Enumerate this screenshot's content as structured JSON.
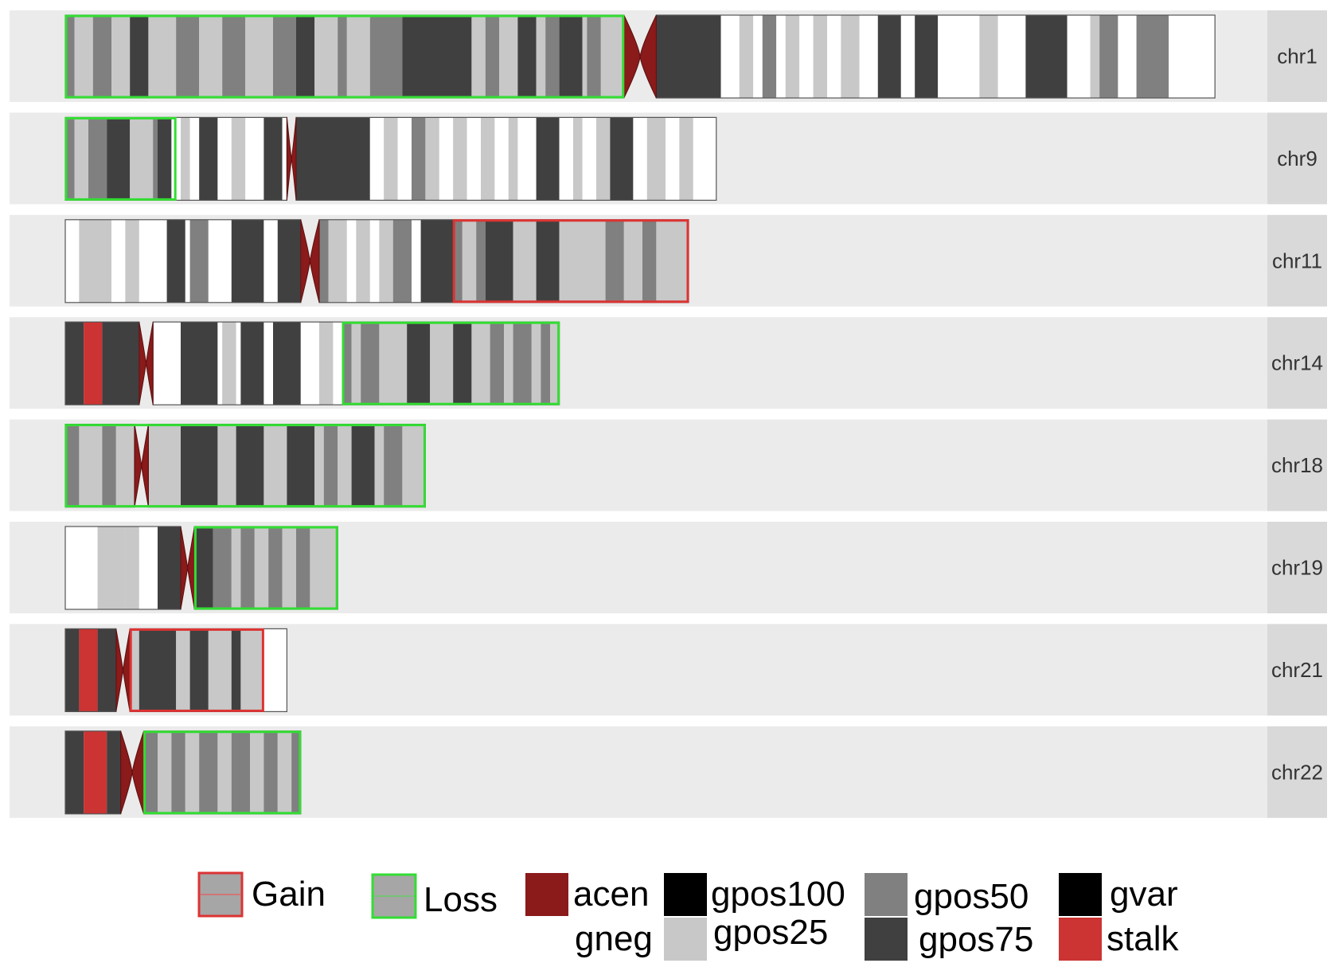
{
  "colors": {
    "gneg": "#ffffff",
    "gpos25": "#c8c8c8",
    "gpos50": "#808080",
    "gpos75": "#404040",
    "gpos100": "#000000",
    "gvar": "#000000",
    "stalk": "#cc3333",
    "acen": "#8b1a1a",
    "gain": "#dd3333",
    "loss": "#33dd33",
    "panel": "#ebebeb",
    "strip": "#d9d9d9"
  },
  "chromosomes": [
    {
      "name": "chr1",
      "length": 249,
      "centromere": [
        121,
        128
      ],
      "bands": [
        [
          0,
          2,
          "gpos50"
        ],
        [
          2,
          6,
          "gpos25"
        ],
        [
          6,
          10,
          "gpos50"
        ],
        [
          10,
          14,
          "gpos25"
        ],
        [
          14,
          18,
          "gpos75"
        ],
        [
          18,
          24,
          "gpos25"
        ],
        [
          24,
          29,
          "gpos50"
        ],
        [
          29,
          34,
          "gpos25"
        ],
        [
          34,
          39,
          "gpos50"
        ],
        [
          39,
          45,
          "gpos25"
        ],
        [
          45,
          50,
          "gpos50"
        ],
        [
          50,
          54,
          "gpos75"
        ],
        [
          54,
          59,
          "gpos25"
        ],
        [
          59,
          61,
          "gpos50"
        ],
        [
          61,
          66,
          "gpos25"
        ],
        [
          66,
          73,
          "gpos50"
        ],
        [
          73,
          88,
          "gpos75"
        ],
        [
          88,
          91,
          "gpos25"
        ],
        [
          91,
          94,
          "gpos50"
        ],
        [
          94,
          98,
          "gpos25"
        ],
        [
          98,
          102,
          "gpos75"
        ],
        [
          102,
          104,
          "gpos25"
        ],
        [
          104,
          107,
          "gpos50"
        ],
        [
          107,
          112,
          "gpos75"
        ],
        [
          112,
          113,
          "gpos25"
        ],
        [
          113,
          116,
          "gpos50"
        ],
        [
          116,
          121,
          "gpos25"
        ],
        [
          128,
          142,
          "gpos75"
        ],
        [
          142,
          146,
          "gneg"
        ],
        [
          146,
          149,
          "gpos25"
        ],
        [
          149,
          151,
          "gneg"
        ],
        [
          151,
          154,
          "gpos50"
        ],
        [
          154,
          156,
          "gneg"
        ],
        [
          156,
          159,
          "gpos25"
        ],
        [
          159,
          162,
          "gneg"
        ],
        [
          162,
          165,
          "gpos25"
        ],
        [
          165,
          168,
          "gneg"
        ],
        [
          168,
          172,
          "gpos25"
        ],
        [
          172,
          176,
          "gneg"
        ],
        [
          176,
          181,
          "gpos75"
        ],
        [
          181,
          184,
          "gneg"
        ],
        [
          184,
          189,
          "gpos75"
        ],
        [
          189,
          198,
          "gneg"
        ],
        [
          198,
          202,
          "gpos25"
        ],
        [
          202,
          208,
          "gneg"
        ],
        [
          208,
          217,
          "gpos75"
        ],
        [
          217,
          222,
          "gneg"
        ],
        [
          222,
          224,
          "gpos25"
        ],
        [
          224,
          228,
          "gpos50"
        ],
        [
          228,
          232,
          "gneg"
        ],
        [
          232,
          239,
          "gpos50"
        ],
        [
          239,
          249,
          "gneg"
        ]
      ],
      "cnv": [
        {
          "start": 0,
          "end": 121,
          "type": "loss"
        }
      ]
    },
    {
      "name": "chr9",
      "length": 141,
      "centromere": [
        48,
        50
      ],
      "bands": [
        [
          0,
          2,
          "gpos50"
        ],
        [
          2,
          5,
          "gpos25"
        ],
        [
          5,
          9,
          "gpos50"
        ],
        [
          9,
          14,
          "gpos75"
        ],
        [
          14,
          19,
          "gpos25"
        ],
        [
          19,
          20,
          "gpos50"
        ],
        [
          20,
          23,
          "gpos75"
        ],
        [
          23,
          25,
          "gneg"
        ],
        [
          25,
          27,
          "gpos25"
        ],
        [
          27,
          29,
          "gneg"
        ],
        [
          29,
          33,
          "gpos75"
        ],
        [
          33,
          36,
          "gneg"
        ],
        [
          36,
          39,
          "gpos25"
        ],
        [
          39,
          43,
          "gneg"
        ],
        [
          43,
          47,
          "gpos75"
        ],
        [
          47,
          48,
          "gneg"
        ],
        [
          50,
          66,
          "gpos75"
        ],
        [
          66,
          69,
          "gneg"
        ],
        [
          69,
          72,
          "gpos25"
        ],
        [
          72,
          75,
          "gneg"
        ],
        [
          75,
          78,
          "gpos50"
        ],
        [
          78,
          81,
          "gpos25"
        ],
        [
          81,
          84,
          "gneg"
        ],
        [
          84,
          87,
          "gpos25"
        ],
        [
          87,
          90,
          "gneg"
        ],
        [
          90,
          93,
          "gpos25"
        ],
        [
          93,
          96,
          "gneg"
        ],
        [
          96,
          98,
          "gpos25"
        ],
        [
          98,
          102,
          "gneg"
        ],
        [
          102,
          107,
          "gpos75"
        ],
        [
          107,
          110,
          "gneg"
        ],
        [
          110,
          112,
          "gpos25"
        ],
        [
          112,
          115,
          "gneg"
        ],
        [
          115,
          118,
          "gpos25"
        ],
        [
          118,
          123,
          "gpos75"
        ],
        [
          123,
          126,
          "gneg"
        ],
        [
          126,
          130,
          "gpos25"
        ],
        [
          130,
          133,
          "gneg"
        ],
        [
          133,
          136,
          "gpos25"
        ],
        [
          136,
          141,
          "gneg"
        ]
      ],
      "cnv": [
        {
          "start": 0,
          "end": 24,
          "type": "loss"
        }
      ]
    },
    {
      "name": "chr11",
      "length": 135,
      "centromere": [
        51,
        55
      ],
      "bands": [
        [
          0,
          3,
          "gneg"
        ],
        [
          3,
          10,
          "gpos25"
        ],
        [
          10,
          13,
          "gneg"
        ],
        [
          13,
          16,
          "gpos25"
        ],
        [
          16,
          22,
          "gneg"
        ],
        [
          22,
          26,
          "gpos75"
        ],
        [
          26,
          27,
          "gneg"
        ],
        [
          27,
          31,
          "gpos50"
        ],
        [
          31,
          36,
          "gneg"
        ],
        [
          36,
          43,
          "gpos75"
        ],
        [
          43,
          46,
          "gneg"
        ],
        [
          46,
          51,
          "gpos75"
        ],
        [
          55,
          57,
          "gpos50"
        ],
        [
          57,
          61,
          "gpos25"
        ],
        [
          61,
          63,
          "gneg"
        ],
        [
          63,
          66,
          "gpos25"
        ],
        [
          66,
          68,
          "gneg"
        ],
        [
          68,
          71,
          "gpos25"
        ],
        [
          71,
          75,
          "gpos50"
        ],
        [
          75,
          77,
          "gneg"
        ],
        [
          77,
          84,
          "gpos75"
        ],
        [
          84,
          86,
          "gpos50"
        ],
        [
          86,
          89,
          "gpos25"
        ],
        [
          89,
          91,
          "gpos50"
        ],
        [
          91,
          97,
          "gpos75"
        ],
        [
          97,
          102,
          "gpos25"
        ],
        [
          102,
          107,
          "gpos75"
        ],
        [
          107,
          112,
          "gpos25"
        ],
        [
          112,
          117,
          "gpos25"
        ],
        [
          117,
          121,
          "gpos50"
        ],
        [
          121,
          125,
          "gpos25"
        ],
        [
          125,
          128,
          "gpos50"
        ],
        [
          128,
          135,
          "gpos25"
        ]
      ],
      "cnv": [
        {
          "start": 84,
          "end": 135,
          "type": "gain"
        }
      ]
    },
    {
      "name": "chr14",
      "length": 107,
      "centromere": [
        16,
        19
      ],
      "bands": [
        [
          0,
          4,
          "gpos75"
        ],
        [
          4,
          8,
          "stalk"
        ],
        [
          8,
          16,
          "gpos75"
        ],
        [
          19,
          25,
          "gneg"
        ],
        [
          25,
          33,
          "gpos75"
        ],
        [
          33,
          34,
          "gneg"
        ],
        [
          34,
          37,
          "gpos25"
        ],
        [
          37,
          38,
          "gneg"
        ],
        [
          38,
          43,
          "gpos75"
        ],
        [
          43,
          45,
          "gneg"
        ],
        [
          45,
          51,
          "gpos75"
        ],
        [
          51,
          55,
          "gneg"
        ],
        [
          55,
          58,
          "gpos25"
        ],
        [
          58,
          60,
          "gneg"
        ],
        [
          60,
          62,
          "gpos50"
        ],
        [
          62,
          64,
          "gpos25"
        ],
        [
          64,
          68,
          "gpos50"
        ],
        [
          68,
          74,
          "gpos25"
        ],
        [
          74,
          79,
          "gpos75"
        ],
        [
          79,
          84,
          "gpos25"
        ],
        [
          84,
          88,
          "gpos75"
        ],
        [
          88,
          92,
          "gpos25"
        ],
        [
          92,
          95,
          "gpos50"
        ],
        [
          95,
          97,
          "gpos25"
        ],
        [
          97,
          101,
          "gpos50"
        ],
        [
          101,
          103,
          "gpos25"
        ],
        [
          103,
          105,
          "gpos50"
        ],
        [
          105,
          107,
          "gpos25"
        ]
      ],
      "cnv": [
        {
          "start": 60,
          "end": 107,
          "type": "loss"
        }
      ]
    },
    {
      "name": "chr18",
      "length": 78,
      "centromere": [
        15,
        18
      ],
      "bands": [
        [
          0,
          3,
          "gpos50"
        ],
        [
          3,
          8,
          "gpos25"
        ],
        [
          8,
          11,
          "gpos50"
        ],
        [
          11,
          15,
          "gpos25"
        ],
        [
          18,
          25,
          "gpos25"
        ],
        [
          25,
          33,
          "gpos75"
        ],
        [
          33,
          37,
          "gpos25"
        ],
        [
          37,
          43,
          "gpos75"
        ],
        [
          43,
          48,
          "gpos25"
        ],
        [
          48,
          54,
          "gpos75"
        ],
        [
          54,
          56,
          "gpos25"
        ],
        [
          56,
          59,
          "gpos50"
        ],
        [
          59,
          62,
          "gpos25"
        ],
        [
          62,
          67,
          "gpos75"
        ],
        [
          67,
          69,
          "gpos25"
        ],
        [
          69,
          73,
          "gpos50"
        ],
        [
          73,
          78,
          "gpos25"
        ]
      ],
      "cnv": [
        {
          "start": 0,
          "end": 78,
          "type": "loss"
        }
      ]
    },
    {
      "name": "chr19",
      "length": 59,
      "centromere": [
        25,
        28
      ],
      "bands": [
        [
          0,
          7,
          "gneg"
        ],
        [
          7,
          13,
          "gpos25"
        ],
        [
          13,
          16,
          "gpos25"
        ],
        [
          16,
          20,
          "gneg"
        ],
        [
          20,
          25,
          "gpos75"
        ],
        [
          28,
          32,
          "gpos75"
        ],
        [
          32,
          36,
          "gpos50"
        ],
        [
          36,
          38,
          "gpos25"
        ],
        [
          38,
          41,
          "gpos50"
        ],
        [
          41,
          44,
          "gpos25"
        ],
        [
          44,
          47,
          "gpos50"
        ],
        [
          47,
          50,
          "gpos25"
        ],
        [
          50,
          53,
          "gpos50"
        ],
        [
          53,
          59,
          "gpos25"
        ]
      ],
      "cnv": [
        {
          "start": 28,
          "end": 59,
          "type": "loss"
        }
      ]
    },
    {
      "name": "chr21",
      "length": 48,
      "centromere": [
        11,
        14
      ],
      "bands": [
        [
          0,
          3,
          "gpos75"
        ],
        [
          3,
          7,
          "stalk"
        ],
        [
          7,
          11,
          "gpos75"
        ],
        [
          14,
          16,
          "gpos25"
        ],
        [
          16,
          24,
          "gpos75"
        ],
        [
          24,
          27,
          "gpos25"
        ],
        [
          27,
          31,
          "gpos75"
        ],
        [
          31,
          36,
          "gpos25"
        ],
        [
          36,
          38,
          "gpos75"
        ],
        [
          38,
          43,
          "gpos25"
        ],
        [
          43,
          48,
          "gneg"
        ]
      ],
      "cnv": [
        {
          "start": 14,
          "end": 43,
          "type": "gain"
        }
      ]
    },
    {
      "name": "chr22",
      "length": 51,
      "centromere": [
        12,
        17
      ],
      "bands": [
        [
          0,
          4,
          "gpos75"
        ],
        [
          4,
          9,
          "stalk"
        ],
        [
          9,
          12,
          "gpos75"
        ],
        [
          17,
          20,
          "gpos50"
        ],
        [
          20,
          23,
          "gpos25"
        ],
        [
          23,
          26,
          "gpos50"
        ],
        [
          26,
          29,
          "gpos25"
        ],
        [
          29,
          33,
          "gpos50"
        ],
        [
          33,
          36,
          "gpos25"
        ],
        [
          36,
          40,
          "gpos50"
        ],
        [
          40,
          43,
          "gpos25"
        ],
        [
          43,
          46,
          "gpos50"
        ],
        [
          46,
          49,
          "gpos25"
        ],
        [
          49,
          51,
          "gpos50"
        ]
      ],
      "cnv": [
        {
          "start": 17,
          "end": 51,
          "type": "loss"
        }
      ]
    }
  ],
  "legend": {
    "gain": "Gain",
    "loss": "Loss",
    "acen": "acen",
    "gpos100": "gpos100",
    "gpos50": "gpos50",
    "gvar": "gvar",
    "gneg": "gneg",
    "gpos25": "gpos25",
    "gpos75": "gpos75",
    "stalk": "stalk"
  }
}
